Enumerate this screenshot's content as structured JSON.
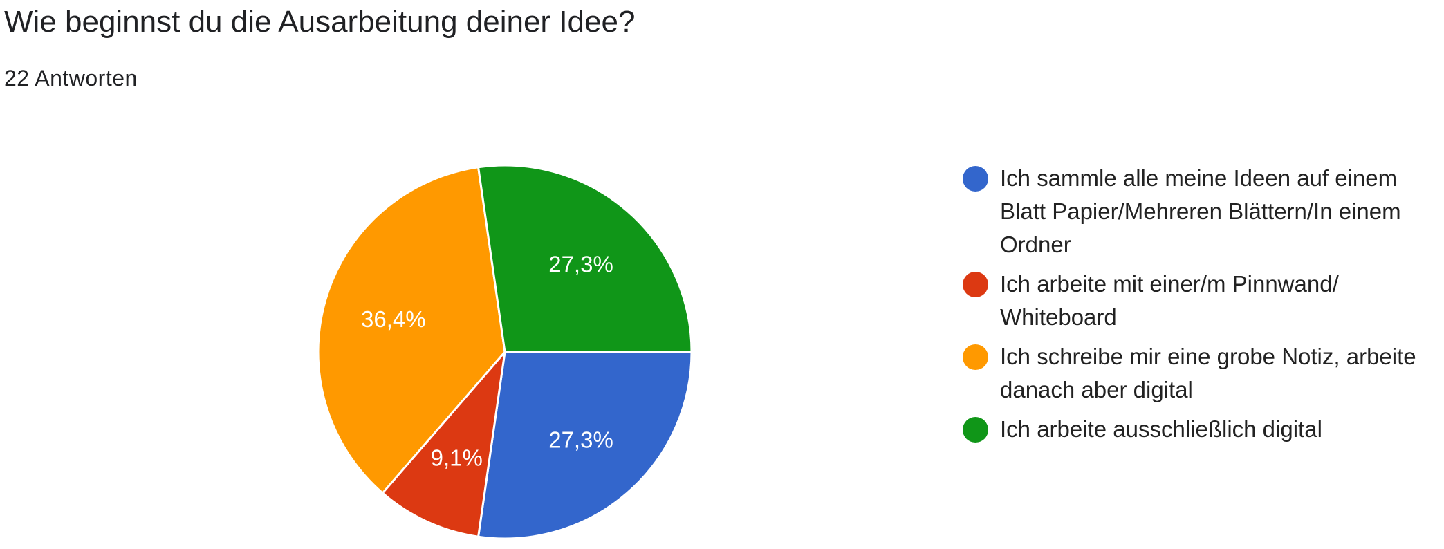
{
  "title": "Wie beginnst du die Ausarbeitung deiner Idee?",
  "subtitle": "22 Antworten",
  "chart_data": {
    "type": "pie",
    "total_responses": 22,
    "legend_position": "right",
    "slices": [
      {
        "label": "Ich sammle alle meine Ideen auf einem Blatt Papier/Mehreren Blättern/In einem Ordner",
        "count": 6,
        "percent": 27.3,
        "percent_label": "27,3%",
        "color": "#3366cc"
      },
      {
        "label": "Ich arbeite mit einer/m Pinnwand/ Whiteboard",
        "count": 2,
        "percent": 9.1,
        "percent_label": "9,1%",
        "color": "#dc3912"
      },
      {
        "label": "Ich schreibe mir eine grobe Notiz, arbeite danach aber digital",
        "count": 8,
        "percent": 36.4,
        "percent_label": "36,4%",
        "color": "#ff9900"
      },
      {
        "label": "Ich arbeite ausschließlich digital",
        "count": 6,
        "percent": 27.3,
        "percent_label": "27,3%",
        "color": "#109618"
      }
    ]
  }
}
